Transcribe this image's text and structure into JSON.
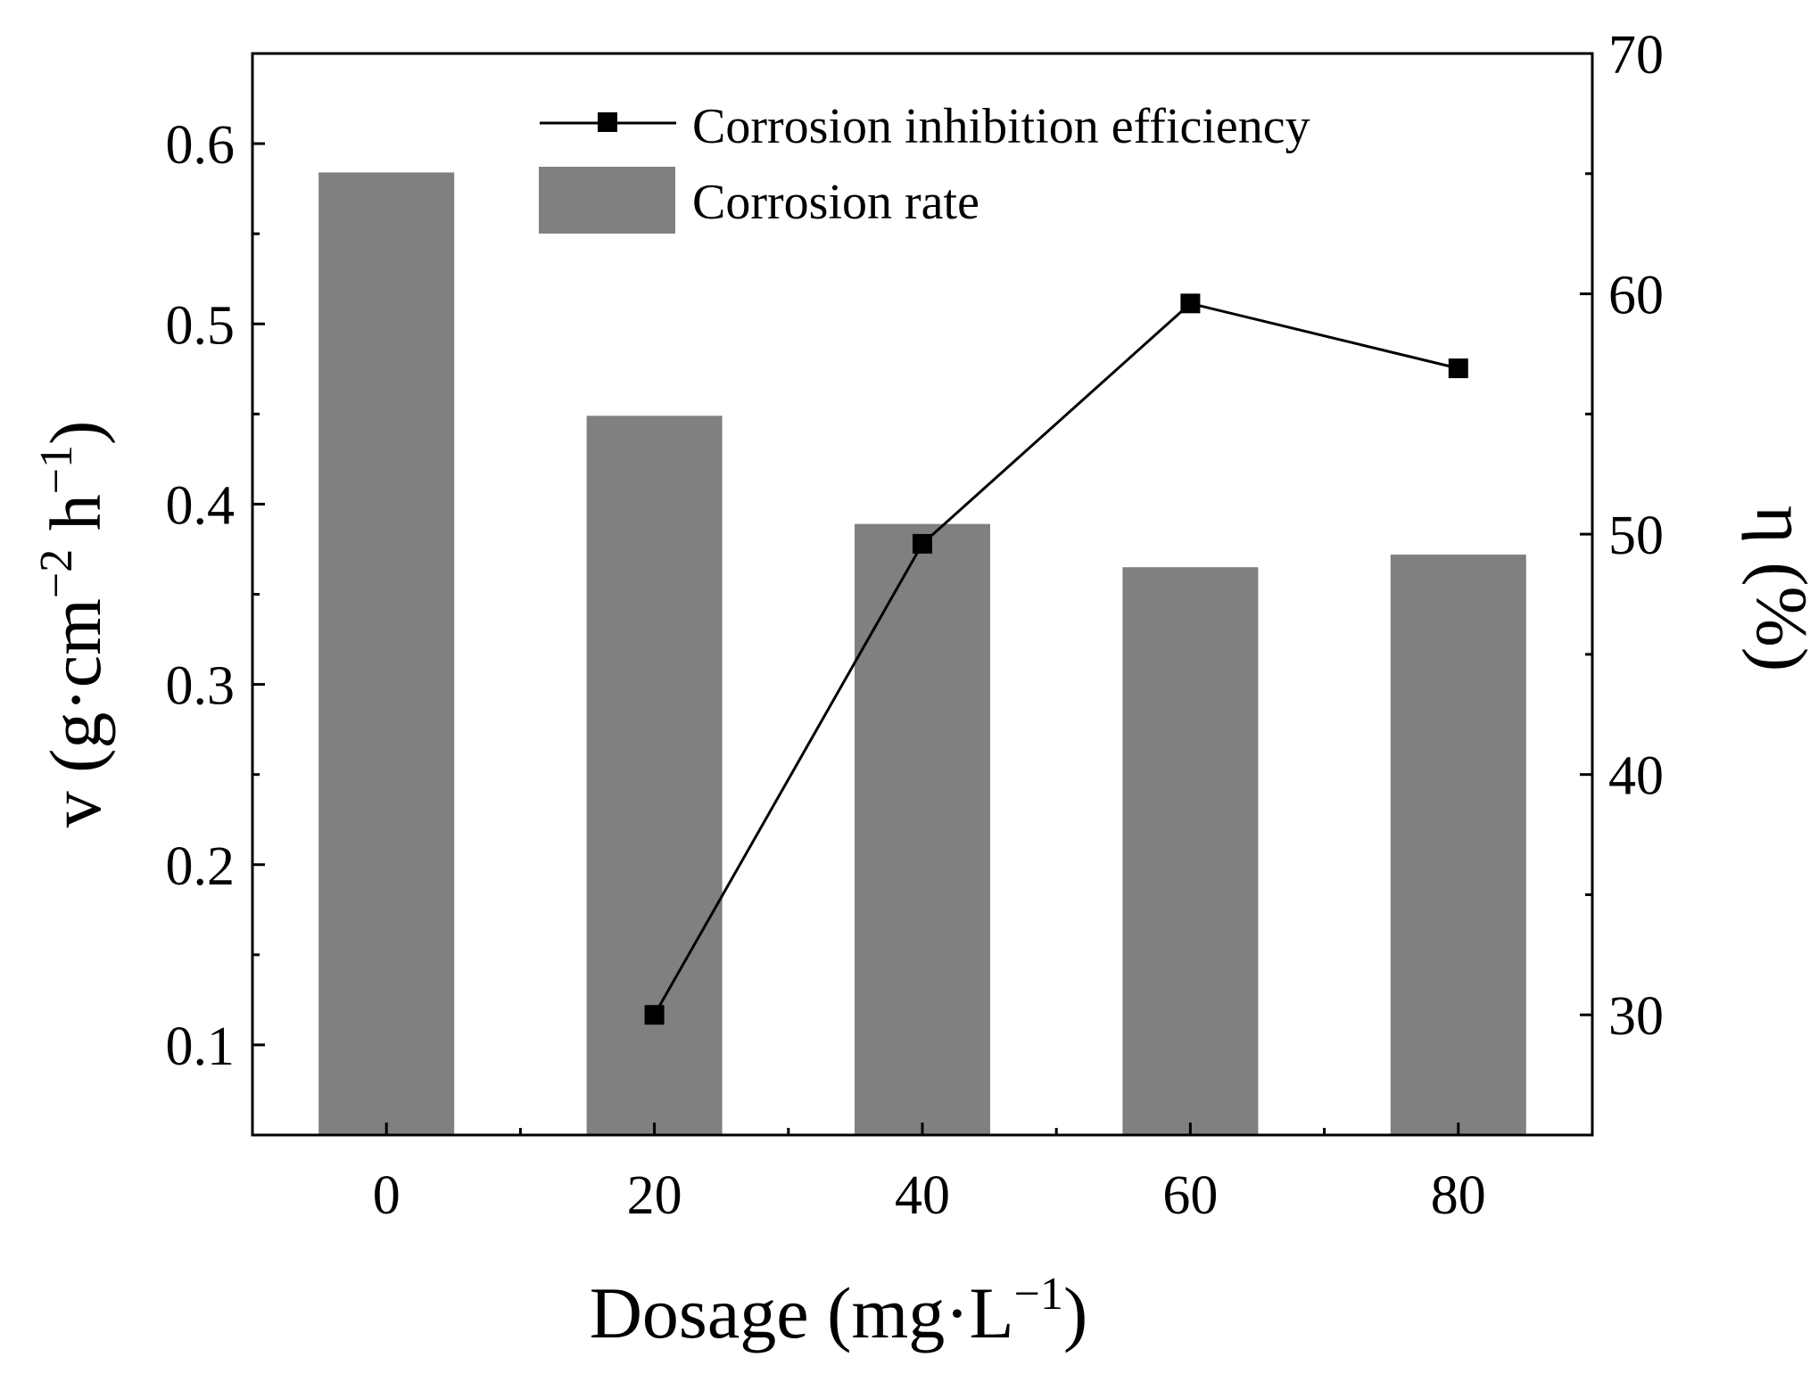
{
  "chart_data": {
    "type": "bar+line",
    "categories": [
      "0",
      "20",
      "40",
      "60",
      "80"
    ],
    "series": [
      {
        "name": "Corrosion rate",
        "type": "bar",
        "axis": "left",
        "color": "#808080",
        "values": [
          0.584,
          0.449,
          0.389,
          0.365,
          0.372
        ]
      },
      {
        "name": "Corrosion inhibition efficiency",
        "type": "line",
        "axis": "right",
        "color": "#000000",
        "values": [
          null,
          30.0,
          49.6,
          59.6,
          56.9
        ]
      }
    ],
    "xlabel": {
      "text": "Dosage (mg·L",
      "sup": "−1",
      "close": ")"
    },
    "ylabel_left": {
      "prefix": "v (g·cm",
      "sup1": "−2",
      "mid": " h",
      "sup2": "−1",
      "close": ")"
    },
    "ylabel_right": "η (%)",
    "ylim_left": [
      0.05,
      0.65
    ],
    "ylim_right": [
      25,
      70
    ],
    "yticks_left": [
      "0.1",
      "0.2",
      "0.3",
      "0.4",
      "0.5",
      "0.6"
    ],
    "yticks_right": [
      "30",
      "40",
      "50",
      "60",
      "70"
    ],
    "legend": {
      "position": "top-center",
      "entries": [
        "Corrosion inhibition efficiency",
        "Corrosion rate"
      ]
    }
  }
}
